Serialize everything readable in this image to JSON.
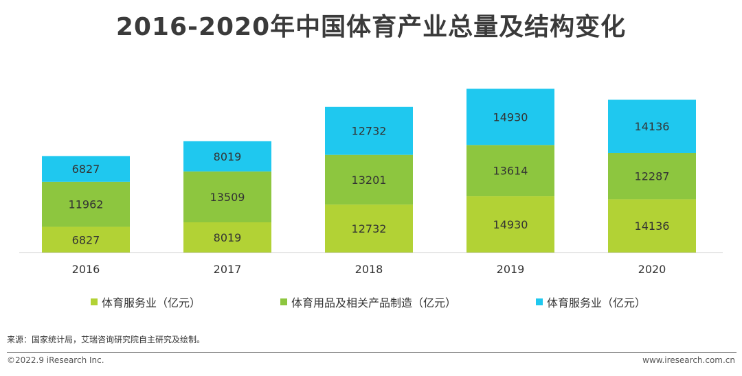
{
  "title": "2016-2020年中国体育产业总量及结构变化",
  "chart_data": {
    "type": "bar",
    "stacked": true,
    "categories": [
      "2016",
      "2017",
      "2018",
      "2019",
      "2020"
    ],
    "series": [
      {
        "name": "体育服务业（亿元）",
        "color": "#b2d235",
        "values": [
          6827,
          8019,
          12732,
          14930,
          14136
        ]
      },
      {
        "name": "体育用品及相关产品制造（亿元）",
        "color": "#8dc63f",
        "values": [
          11962,
          13509,
          13201,
          13614,
          12287
        ]
      },
      {
        "name": "体育服务业（亿元）",
        "color": "#1fc8ef",
        "values": [
          6827,
          8019,
          12732,
          14930,
          14136
        ]
      }
    ],
    "grid": false,
    "legend": "bottom",
    "ylim": [
      0,
      43000
    ]
  },
  "source": "来源：国家统计局，艾瑞咨询研究院自主研究及绘制。",
  "copyright": "©2022.9 iResearch Inc.",
  "website": "www.iresearch.com.cn"
}
